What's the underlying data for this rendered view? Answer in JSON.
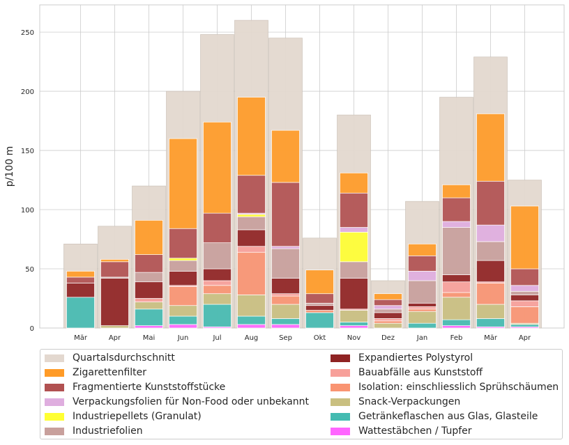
{
  "chart_data": {
    "type": "bar",
    "ylabel": "p/100 m",
    "xlabel": "",
    "ylim": [
      0,
      273
    ],
    "yticks": [
      0,
      50,
      100,
      150,
      200,
      250
    ],
    "grid": true,
    "legend_position": "bottom",
    "categories": [
      "Mär",
      "Apr",
      "Mai",
      "Jun",
      "Jul",
      "Aug",
      "Sep",
      "Okt",
      "Nov",
      "Dez",
      "Jan",
      "Feb",
      "Mär",
      "Apr"
    ],
    "background_series": {
      "name": "Quartalsdurchschnitt",
      "color": "#e3d8cf",
      "values": [
        71,
        86,
        120,
        200,
        248,
        260,
        245,
        76,
        180,
        40,
        107,
        195,
        229,
        125
      ]
    },
    "stacked_series": [
      {
        "name": "Wattestäbchen / Tupfer",
        "color": "#ff66ff",
        "values": [
          0,
          0,
          2,
          3,
          1,
          3,
          3,
          0,
          2,
          0,
          0,
          2,
          1,
          1
        ]
      },
      {
        "name": "Getränkeflaschen aus Glas, Glasteile",
        "color": "#44bbb1",
        "values": [
          26,
          0,
          14,
          7,
          19,
          7,
          5,
          13,
          3,
          0,
          4,
          5,
          7,
          2
        ]
      },
      {
        "name": "Snack-Verpackungen",
        "color": "#c9bf80",
        "values": [
          0,
          2,
          6,
          9,
          9,
          18,
          12,
          0,
          10,
          4,
          10,
          19,
          12,
          1
        ]
      },
      {
        "name": "Isolation: einschliesslich Sprühschäumen",
        "color": "#f99472",
        "values": [
          0,
          0,
          0,
          16,
          7,
          36,
          7,
          2,
          0,
          2,
          2,
          4,
          18,
          14
        ]
      },
      {
        "name": "Bauabfälle aus Kunststoff",
        "color": "#f7a09a",
        "values": [
          0,
          0,
          3,
          1,
          4,
          5,
          2,
          0,
          1,
          2,
          2,
          9,
          1,
          5
        ]
      },
      {
        "name": "Expandiertes Polystyrol",
        "color": "#8f2323",
        "values": [
          12,
          40,
          14,
          12,
          10,
          14,
          13,
          4,
          26,
          5,
          3,
          6,
          18,
          5
        ]
      },
      {
        "name": "Industriefolien",
        "color": "#c8a09c",
        "values": [
          0,
          1,
          8,
          9,
          22,
          11,
          25,
          2,
          14,
          3,
          19,
          40,
          16,
          3
        ]
      },
      {
        "name": "Industriepellets (Granulat)",
        "color": "#ffff33",
        "values": [
          0,
          0,
          0,
          2,
          0,
          2,
          0,
          0,
          25,
          0,
          0,
          0,
          0,
          0
        ]
      },
      {
        "name": "Verpackungsfolien für Non-Food oder unbekannt",
        "color": "#dfaedf",
        "values": [
          0,
          0,
          0,
          0,
          0,
          1,
          2,
          0,
          4,
          3,
          8,
          5,
          14,
          5
        ]
      },
      {
        "name": "Fragmentierte Kunststoffstücke",
        "color": "#b15151",
        "values": [
          5,
          13,
          15,
          25,
          25,
          32,
          54,
          8,
          29,
          5,
          13,
          20,
          37,
          14
        ]
      },
      {
        "name": "Zigarettenfilter",
        "color": "#ff9b27",
        "values": [
          5,
          2,
          29,
          76,
          77,
          66,
          44,
          20,
          17,
          5,
          10,
          11,
          57,
          53
        ]
      }
    ]
  },
  "legend": {
    "items": [
      {
        "label": "Quartalsdurchschnitt",
        "color": "#e3d8cf"
      },
      {
        "label": "Zigarettenfilter",
        "color": "#ff9b27"
      },
      {
        "label": "Fragmentierte Kunststoffstücke",
        "color": "#b15151"
      },
      {
        "label": "Verpackungsfolien für Non-Food oder unbekannt",
        "color": "#dfaedf"
      },
      {
        "label": "Industriepellets (Granulat)",
        "color": "#ffff33"
      },
      {
        "label": "Industriefolien",
        "color": "#c8a09c"
      },
      {
        "label": "Expandiertes Polystyrol",
        "color": "#8f2323"
      },
      {
        "label": "Bauabfälle aus Kunststoff",
        "color": "#f7a09a"
      },
      {
        "label": "Isolation: einschliesslich Sprühschäumen",
        "color": "#f99472"
      },
      {
        "label": "Snack-Verpackungen",
        "color": "#c9bf80"
      },
      {
        "label": "Getränkeflaschen aus Glas, Glasteile",
        "color": "#44bbb1"
      },
      {
        "label": "Wattestäbchen / Tupfer",
        "color": "#ff66ff"
      }
    ]
  }
}
